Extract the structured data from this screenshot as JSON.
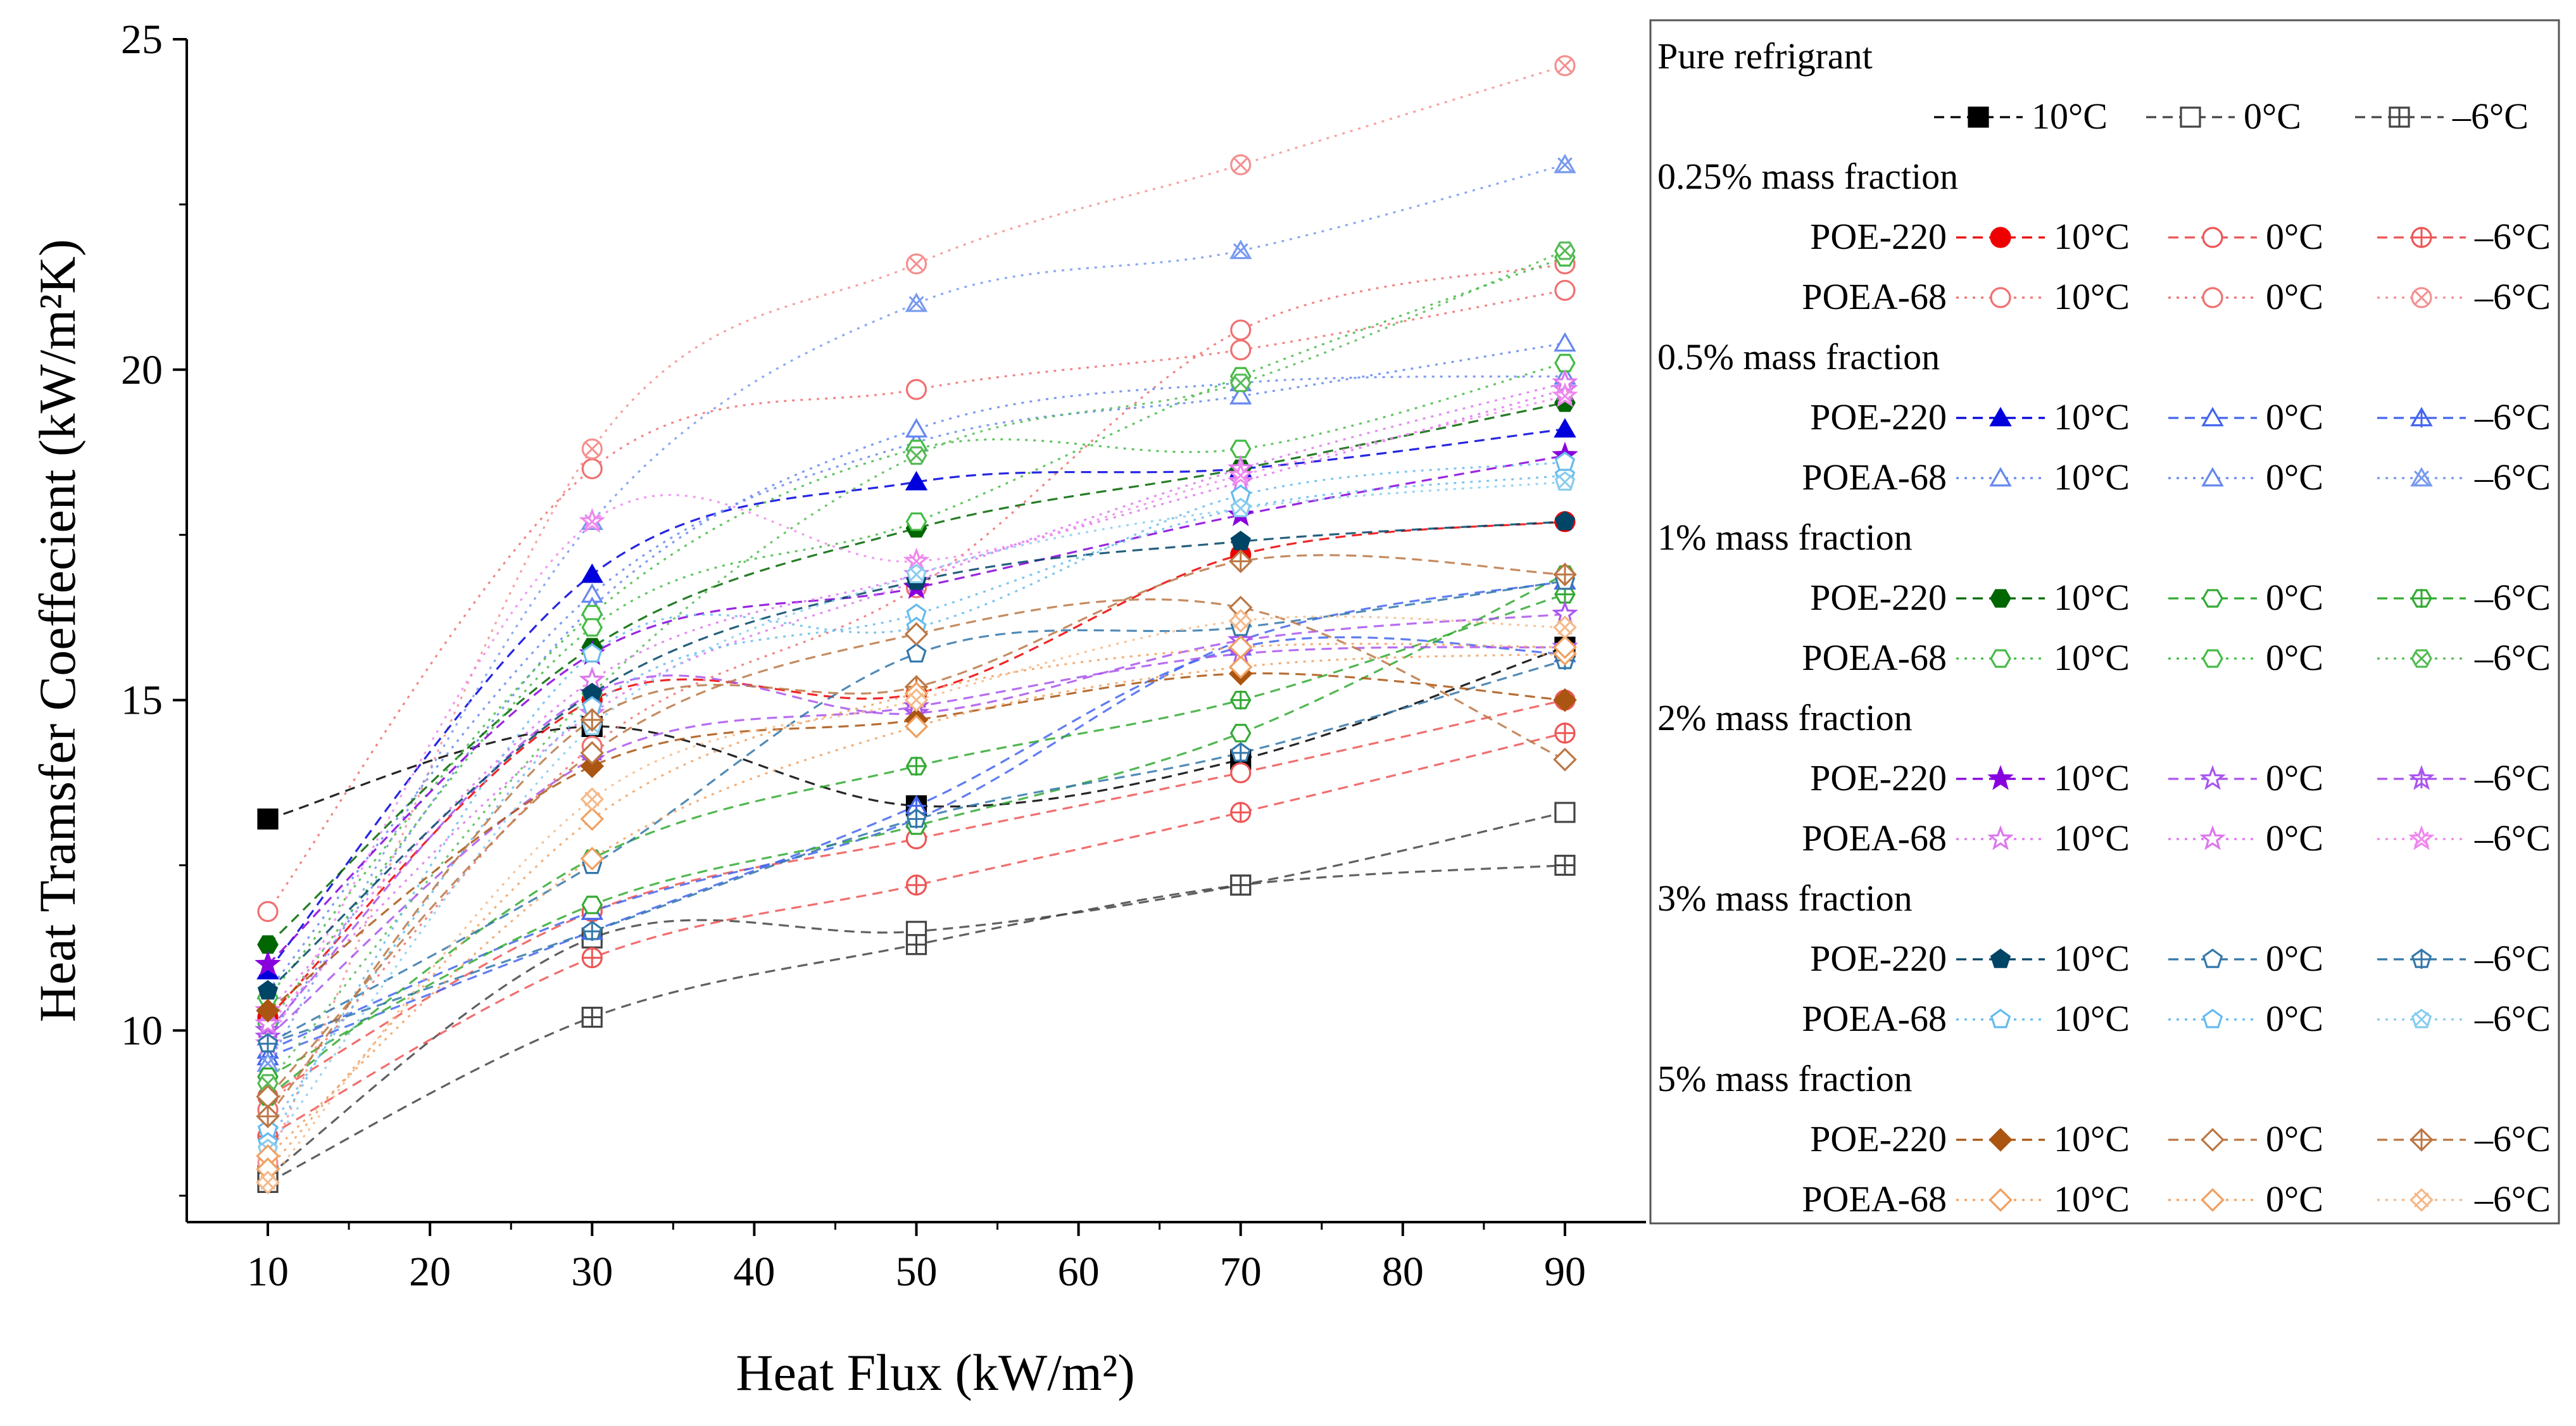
{
  "chart_data": {
    "type": "line",
    "xlabel": "Heat Flux (kW/m²)",
    "ylabel": "Heat Tramsfer Coeffecient (kW/m²K)",
    "xlim": [
      5,
      95
    ],
    "ylim": [
      7.1,
      25
    ],
    "xticks": [
      10,
      20,
      30,
      40,
      50,
      60,
      70,
      80,
      90
    ],
    "yticks": [
      10,
      15,
      20,
      25
    ],
    "x": [
      10,
      30,
      50,
      70,
      90
    ],
    "grid": false,
    "legend_position": "right",
    "legend": [
      {
        "heading": "Pure refrigrant",
        "rows": [
          {
            "label": "",
            "entries": [
              {
                "temp": "10°C",
                "series": "pure-10"
              },
              {
                "temp": "0°C",
                "series": "pure-0"
              },
              {
                "temp": "–6°C",
                "series": "pure-m6"
              }
            ]
          }
        ]
      },
      {
        "heading": "0.25% mass fraction",
        "rows": [
          {
            "label": "POE-220",
            "entries": [
              {
                "temp": "10°C",
                "series": "p025-poe-10"
              },
              {
                "temp": "0°C",
                "series": "p025-poe-0"
              },
              {
                "temp": "–6°C",
                "series": "p025-poe-m6"
              }
            ]
          },
          {
            "label": "POEA-68",
            "entries": [
              {
                "temp": "10°C",
                "series": "p025-poea-10"
              },
              {
                "temp": "0°C",
                "series": "p025-poea-0"
              },
              {
                "temp": "–6°C",
                "series": "p025-poea-m6"
              }
            ]
          }
        ]
      },
      {
        "heading": "0.5% mass fraction",
        "rows": [
          {
            "label": "POE-220",
            "entries": [
              {
                "temp": "10°C",
                "series": "p05-poe-10"
              },
              {
                "temp": "0°C",
                "series": "p05-poe-0"
              },
              {
                "temp": "–6°C",
                "series": "p05-poe-m6"
              }
            ]
          },
          {
            "label": "POEA-68",
            "entries": [
              {
                "temp": "10°C",
                "series": "p05-poea-10"
              },
              {
                "temp": "0°C",
                "series": "p05-poea-0"
              },
              {
                "temp": "–6°C",
                "series": "p05-poea-m6"
              }
            ]
          }
        ]
      },
      {
        "heading": "1% mass fraction",
        "rows": [
          {
            "label": "POE-220",
            "entries": [
              {
                "temp": "10°C",
                "series": "p1-poe-10"
              },
              {
                "temp": "0°C",
                "series": "p1-poe-0"
              },
              {
                "temp": "–6°C",
                "series": "p1-poe-m6"
              }
            ]
          },
          {
            "label": "POEA-68",
            "entries": [
              {
                "temp": "10°C",
                "series": "p1-poea-10"
              },
              {
                "temp": "0°C",
                "series": "p1-poea-0"
              },
              {
                "temp": "–6°C",
                "series": "p1-poea-m6"
              }
            ]
          }
        ]
      },
      {
        "heading": "2% mass fraction",
        "rows": [
          {
            "label": "POE-220",
            "entries": [
              {
                "temp": "10°C",
                "series": "p2-poe-10"
              },
              {
                "temp": "0°C",
                "series": "p2-poe-0"
              },
              {
                "temp": "–6°C",
                "series": "p2-poe-m6"
              }
            ]
          },
          {
            "label": "POEA-68",
            "entries": [
              {
                "temp": "10°C",
                "series": "p2-poea-10"
              },
              {
                "temp": "0°C",
                "series": "p2-poea-0"
              },
              {
                "temp": "–6°C",
                "series": "p2-poea-m6"
              }
            ]
          }
        ]
      },
      {
        "heading": "3% mass fraction",
        "rows": [
          {
            "label": "POE-220",
            "entries": [
              {
                "temp": "10°C",
                "series": "p3-poe-10"
              },
              {
                "temp": "0°C",
                "series": "p3-poe-0"
              },
              {
                "temp": "–6°C",
                "series": "p3-poe-m6"
              }
            ]
          },
          {
            "label": "POEA-68",
            "entries": [
              {
                "temp": "10°C",
                "series": "p3-poea-10"
              },
              {
                "temp": "0°C",
                "series": "p3-poea-0"
              },
              {
                "temp": "–6°C",
                "series": "p3-poea-m6"
              }
            ]
          }
        ]
      },
      {
        "heading": "5% mass fraction",
        "rows": [
          {
            "label": "POE-220",
            "entries": [
              {
                "temp": "10°C",
                "series": "p5-poe-10"
              },
              {
                "temp": "0°C",
                "series": "p5-poe-0"
              },
              {
                "temp": "–6°C",
                "series": "p5-poe-m6"
              }
            ]
          },
          {
            "label": "POEA-68",
            "entries": [
              {
                "temp": "10°C",
                "series": "p5-poea-10"
              },
              {
                "temp": "0°C",
                "series": "p5-poea-0"
              },
              {
                "temp": "–6°C",
                "series": "p5-poea-m6"
              }
            ]
          }
        ]
      }
    ],
    "series": [
      {
        "id": "pure-10",
        "color": "#000000",
        "marker": "square",
        "fill": "solid",
        "dash": "dashed",
        "values": [
          13.2,
          14.6,
          13.4,
          14.1,
          15.8
        ]
      },
      {
        "id": "pure-0",
        "color": "#444444",
        "marker": "square",
        "fill": "open",
        "dash": "dashed",
        "values": [
          7.8,
          11.4,
          11.5,
          12.2,
          13.3
        ]
      },
      {
        "id": "pure-m6",
        "color": "#444444",
        "marker": "square",
        "fill": "plus",
        "dash": "dashed",
        "values": [
          7.7,
          10.2,
          11.3,
          12.2,
          12.5
        ]
      },
      {
        "id": "p025-poe-10",
        "color": "#ee0000",
        "marker": "circle",
        "fill": "solid",
        "dash": "dashed",
        "values": [
          10.2,
          15.0,
          15.1,
          17.2,
          17.7
        ]
      },
      {
        "id": "p025-poe-0",
        "color": "#ee5555",
        "marker": "circle",
        "fill": "open",
        "dash": "dashed",
        "values": [
          9.0,
          11.8,
          12.9,
          13.9,
          15.0
        ]
      },
      {
        "id": "p025-poe-m6",
        "color": "#ee5555",
        "marker": "circle",
        "fill": "plus",
        "dash": "dashed",
        "values": [
          8.4,
          11.1,
          12.2,
          13.3,
          14.5
        ]
      },
      {
        "id": "p025-poea-10",
        "color": "#f07070",
        "marker": "circle",
        "fill": "half-bottom",
        "dash": "dotted",
        "values": [
          11.8,
          18.5,
          19.7,
          20.3,
          21.2
        ]
      },
      {
        "id": "p025-poea-0",
        "color": "#f07070",
        "marker": "circle",
        "fill": "half-right",
        "dash": "dotted",
        "values": [
          8.8,
          14.3,
          16.7,
          20.6,
          21.6
        ]
      },
      {
        "id": "p025-poea-m6",
        "color": "#f49090",
        "marker": "circle",
        "fill": "cross",
        "dash": "dotted",
        "values": [
          8.0,
          18.8,
          21.6,
          23.1,
          24.6
        ]
      },
      {
        "id": "p05-poe-10",
        "color": "#0000dd",
        "marker": "triangle",
        "fill": "solid",
        "dash": "dashed",
        "values": [
          10.9,
          16.9,
          18.3,
          18.5,
          19.1
        ]
      },
      {
        "id": "p05-poe-0",
        "color": "#4466ee",
        "marker": "triangle",
        "fill": "open",
        "dash": "dashed",
        "values": [
          9.7,
          11.8,
          13.2,
          15.9,
          16.8
        ]
      },
      {
        "id": "p05-poe-m6",
        "color": "#4466ee",
        "marker": "triangle",
        "fill": "plus",
        "dash": "dashed",
        "values": [
          9.6,
          11.5,
          13.4,
          15.8,
          15.7
        ]
      },
      {
        "id": "p05-poea-10",
        "color": "#6688ee",
        "marker": "triangle",
        "fill": "half-bottom",
        "dash": "dotted",
        "values": [
          10.6,
          16.6,
          18.9,
          19.6,
          20.4
        ]
      },
      {
        "id": "p05-poea-0",
        "color": "#6688ee",
        "marker": "triangle",
        "fill": "half-right",
        "dash": "dotted",
        "values": [
          9.9,
          16.4,
          19.1,
          19.8,
          19.9
        ]
      },
      {
        "id": "p05-poea-m6",
        "color": "#7799ee",
        "marker": "triangle",
        "fill": "cross",
        "dash": "dotted",
        "values": [
          9.5,
          17.7,
          21.0,
          21.8,
          23.1
        ]
      },
      {
        "id": "p1-poe-10",
        "color": "#006600",
        "marker": "hexagon",
        "fill": "solid",
        "dash": "dashed",
        "values": [
          11.3,
          15.8,
          17.6,
          18.5,
          19.5
        ]
      },
      {
        "id": "p1-poe-0",
        "color": "#33aa33",
        "marker": "hexagon",
        "fill": "open",
        "dash": "dashed",
        "values": [
          9.3,
          11.9,
          13.1,
          14.5,
          16.9
        ]
      },
      {
        "id": "p1-poe-m6",
        "color": "#33aa33",
        "marker": "hexagon",
        "fill": "plus",
        "dash": "dashed",
        "values": [
          9.0,
          12.6,
          14.0,
          15.0,
          16.6
        ]
      },
      {
        "id": "p1-poea-10",
        "color": "#44bb44",
        "marker": "hexagon",
        "fill": "half-bottom",
        "dash": "dotted",
        "values": [
          10.5,
          16.3,
          18.8,
          18.8,
          20.1
        ]
      },
      {
        "id": "p1-poea-0",
        "color": "#44bb44",
        "marker": "hexagon",
        "fill": "half-right",
        "dash": "dotted",
        "values": [
          10.1,
          16.1,
          17.7,
          19.9,
          21.7
        ]
      },
      {
        "id": "p1-poea-m6",
        "color": "#55bb55",
        "marker": "hexagon",
        "fill": "cross",
        "dash": "dotted",
        "values": [
          9.2,
          15.1,
          18.7,
          19.8,
          21.8
        ]
      },
      {
        "id": "p2-poe-10",
        "color": "#8800dd",
        "marker": "star",
        "fill": "solid",
        "dash": "dashed",
        "values": [
          11.0,
          15.7,
          16.7,
          17.8,
          18.7
        ]
      },
      {
        "id": "p2-poe-0",
        "color": "#aa55ee",
        "marker": "star",
        "fill": "open",
        "dash": "dashed",
        "values": [
          10.0,
          15.1,
          14.8,
          15.9,
          16.3
        ]
      },
      {
        "id": "p2-poe-m6",
        "color": "#aa55ee",
        "marker": "star",
        "fill": "plus",
        "dash": "dashed",
        "values": [
          9.9,
          14.1,
          14.9,
          15.7,
          15.8
        ]
      },
      {
        "id": "p2-poea-10",
        "color": "#dd77ee",
        "marker": "star",
        "fill": "half-bottom",
        "dash": "dotted",
        "values": [
          10.3,
          15.3,
          16.9,
          18.3,
          19.7
        ]
      },
      {
        "id": "p2-poea-0",
        "color": "#dd77ee",
        "marker": "star",
        "fill": "half-right",
        "dash": "dotted",
        "values": [
          10.1,
          14.8,
          16.8,
          18.5,
          19.8
        ]
      },
      {
        "id": "p2-poea-m6",
        "color": "#ee88ee",
        "marker": "star",
        "fill": "cross",
        "dash": "dotted",
        "values": [
          9.8,
          17.7,
          17.1,
          18.4,
          19.6
        ]
      },
      {
        "id": "p3-poe-10",
        "color": "#004466",
        "marker": "pentagon",
        "fill": "solid",
        "dash": "dashed",
        "values": [
          10.6,
          15.1,
          16.8,
          17.4,
          17.7
        ]
      },
      {
        "id": "p3-poe-0",
        "color": "#3377aa",
        "marker": "pentagon",
        "fill": "open",
        "dash": "dashed",
        "values": [
          9.8,
          12.5,
          15.7,
          16.1,
          16.8
        ]
      },
      {
        "id": "p3-poe-m6",
        "color": "#3377aa",
        "marker": "pentagon",
        "fill": "plus",
        "dash": "dashed",
        "values": [
          9.8,
          11.5,
          13.2,
          14.2,
          15.6
        ]
      },
      {
        "id": "p3-poea-10",
        "color": "#66bbee",
        "marker": "pentagon",
        "fill": "half-bottom",
        "dash": "dotted",
        "values": [
          8.5,
          14.9,
          16.3,
          17.9,
          18.4
        ]
      },
      {
        "id": "p3-poea-0",
        "color": "#66bbee",
        "marker": "pentagon",
        "fill": "half-right",
        "dash": "dotted",
        "values": [
          8.3,
          15.7,
          16.1,
          18.1,
          18.6
        ]
      },
      {
        "id": "p3-poea-m6",
        "color": "#88ccee",
        "marker": "pentagon",
        "fill": "cross",
        "dash": "dotted",
        "values": [
          8.2,
          14.6,
          16.9,
          17.9,
          18.3
        ]
      },
      {
        "id": "p5-poe-10",
        "color": "#aa5511",
        "marker": "diamond",
        "fill": "solid",
        "dash": "dashed",
        "values": [
          10.3,
          14.0,
          14.7,
          15.4,
          15.0
        ]
      },
      {
        "id": "p5-poe-0",
        "color": "#bb7744",
        "marker": "diamond",
        "fill": "open",
        "dash": "dashed",
        "values": [
          9.0,
          14.2,
          16.0,
          16.4,
          14.1
        ]
      },
      {
        "id": "p5-poe-m6",
        "color": "#bb7744",
        "marker": "diamond",
        "fill": "plus",
        "dash": "dashed",
        "values": [
          8.7,
          14.7,
          15.2,
          17.1,
          16.9
        ]
      },
      {
        "id": "p5-poea-10",
        "color": "#f0a060",
        "marker": "diamond",
        "fill": "half-bottom",
        "dash": "dotted",
        "values": [
          8.1,
          12.6,
          14.6,
          15.5,
          15.7
        ]
      },
      {
        "id": "p5-poea-0",
        "color": "#f0a060",
        "marker": "diamond",
        "fill": "half-right",
        "dash": "dotted",
        "values": [
          7.9,
          13.2,
          15.1,
          15.8,
          15.8
        ]
      },
      {
        "id": "p5-poea-m6",
        "color": "#f4b888",
        "marker": "diamond",
        "fill": "cross",
        "dash": "dotted",
        "values": [
          7.7,
          13.5,
          15.0,
          16.2,
          16.1
        ]
      }
    ]
  }
}
